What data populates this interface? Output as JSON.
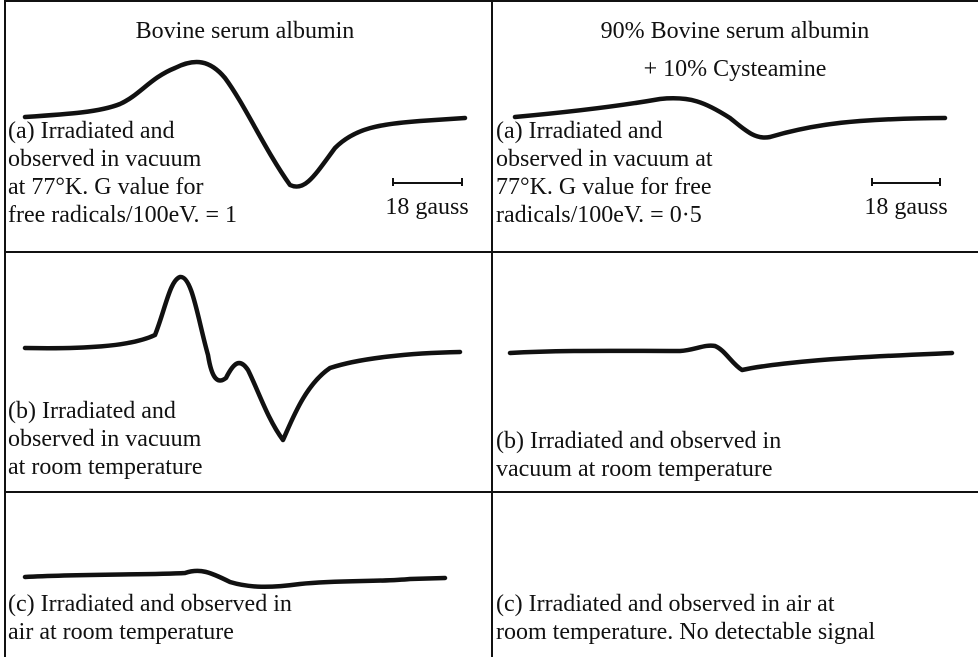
{
  "columns": [
    {
      "title": [
        "Bovine serum albumin"
      ],
      "panels": [
        {
          "lines": [
            "(a) Irradiated and",
            "observed in vacuum",
            "at 77°K. G value for",
            "free radicals/100eV. = 1"
          ],
          "scale": "18 gauss"
        },
        {
          "lines": [
            "(b) Irradiated and",
            "observed in vacuum",
            "at room temperature"
          ]
        },
        {
          "lines": [
            "(c) Irradiated and observed in",
            "air at room temperature"
          ]
        }
      ]
    },
    {
      "title": [
        "90% Bovine serum albumin",
        "+ 10% Cysteamine"
      ],
      "panels": [
        {
          "lines": [
            "(a) Irradiated and",
            "observed in vacuum at",
            "77°K. G value for free",
            "radicals/100eV. = 0·5"
          ],
          "scale": "18 gauss"
        },
        {
          "lines": [
            "(b) Irradiated and observed in",
            "vacuum at room temperature"
          ]
        },
        {
          "lines": [
            "(c) Irradiated and observed in air at",
            "room temperature. No detectable signal"
          ]
        }
      ]
    }
  ]
}
